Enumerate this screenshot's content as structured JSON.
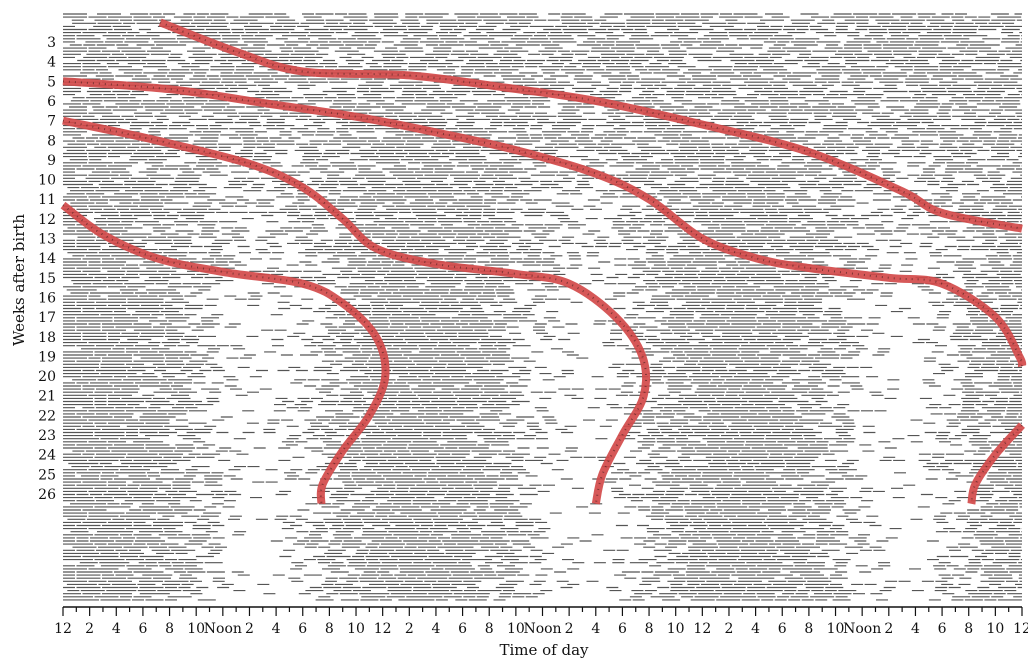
{
  "chart_data": {
    "type": "actogram",
    "title": "",
    "xlabel": "Time of day",
    "ylabel": "Weeks after birth",
    "y_ticks": [
      "3",
      "4",
      "5",
      "6",
      "7",
      "8",
      "9",
      "10",
      "11",
      "12",
      "13",
      "14",
      "15",
      "16",
      "17",
      "18",
      "19",
      "20",
      "21",
      "22",
      "23",
      "24",
      "25",
      "26"
    ],
    "x_ticks": [
      "12",
      "2",
      "4",
      "6",
      "8",
      "10",
      "Noon",
      "2",
      "4",
      "6",
      "8",
      "10",
      "12",
      "2",
      "4",
      "6",
      "8",
      "10",
      "Noon",
      "2",
      "4",
      "6",
      "8",
      "10",
      "12",
      "2",
      "4",
      "6",
      "8",
      "10",
      "Noon",
      "2",
      "4",
      "6",
      "8",
      "10",
      "12"
    ],
    "x_range_hours": [
      0,
      72
    ],
    "y_range_weeks": [
      2,
      26.5
    ],
    "grid": false,
    "legend": "none",
    "colors": {
      "sleep": "#555555",
      "curve": "#d24a4a",
      "curve_dots": "#3a1a1a",
      "axis": "#111111"
    },
    "series": [
      {
        "points": [
          [
            7.3,
            2
          ],
          [
            13.0,
            3.5
          ],
          [
            18.0,
            4.5
          ],
          [
            26.0,
            4.7
          ],
          [
            33.0,
            5.3
          ],
          [
            40.0,
            6.0
          ],
          [
            48.0,
            7.2
          ],
          [
            56.0,
            8.6
          ],
          [
            63.0,
            10.6
          ],
          [
            66.0,
            11.7
          ],
          [
            72.0,
            12.5
          ]
        ]
      },
      {
        "points": [
          [
            0,
            5.0
          ],
          [
            8.0,
            5.4
          ],
          [
            15.0,
            6.1
          ],
          [
            22.0,
            6.8
          ],
          [
            28.0,
            7.6
          ],
          [
            34.0,
            8.5
          ],
          [
            40.0,
            9.7
          ],
          [
            44.0,
            11.0
          ],
          [
            48.0,
            13.0
          ],
          [
            52.0,
            14.0
          ],
          [
            56.0,
            14.5
          ],
          [
            62.0,
            15.0
          ],
          [
            66.0,
            15.3
          ],
          [
            70.0,
            17.0
          ],
          [
            71.8,
            19.0
          ],
          [
            72.0,
            19.5
          ]
        ]
      },
      {
        "points": [
          [
            0,
            7.0
          ],
          [
            7.0,
            8.0
          ],
          [
            14.0,
            9.2
          ],
          [
            18.0,
            10.4
          ],
          [
            21.0,
            12.0
          ],
          [
            23.5,
            13.5
          ],
          [
            28.0,
            14.3
          ],
          [
            34.0,
            14.8
          ],
          [
            38.0,
            15.3
          ],
          [
            41.5,
            17.0
          ],
          [
            43.5,
            19.0
          ],
          [
            43.6,
            21.0
          ],
          [
            42.0,
            23.0
          ],
          [
            40.5,
            25.0
          ],
          [
            40.0,
            26.5
          ]
        ]
      },
      {
        "points": [
          [
            0,
            11.3
          ],
          [
            3.0,
            12.8
          ],
          [
            7.0,
            14.0
          ],
          [
            12.0,
            14.7
          ],
          [
            18.0,
            15.3
          ],
          [
            21.0,
            16.3
          ],
          [
            23.5,
            18.0
          ],
          [
            24.2,
            20.0
          ],
          [
            23.0,
            22.0
          ],
          [
            21.0,
            23.8
          ],
          [
            19.5,
            25.5
          ],
          [
            19.4,
            26.5
          ]
        ]
      },
      {
        "points": [
          [
            72.0,
            22.5
          ],
          [
            70.0,
            24.0
          ],
          [
            68.5,
            25.5
          ],
          [
            68.2,
            26.5
          ]
        ]
      }
    ]
  }
}
